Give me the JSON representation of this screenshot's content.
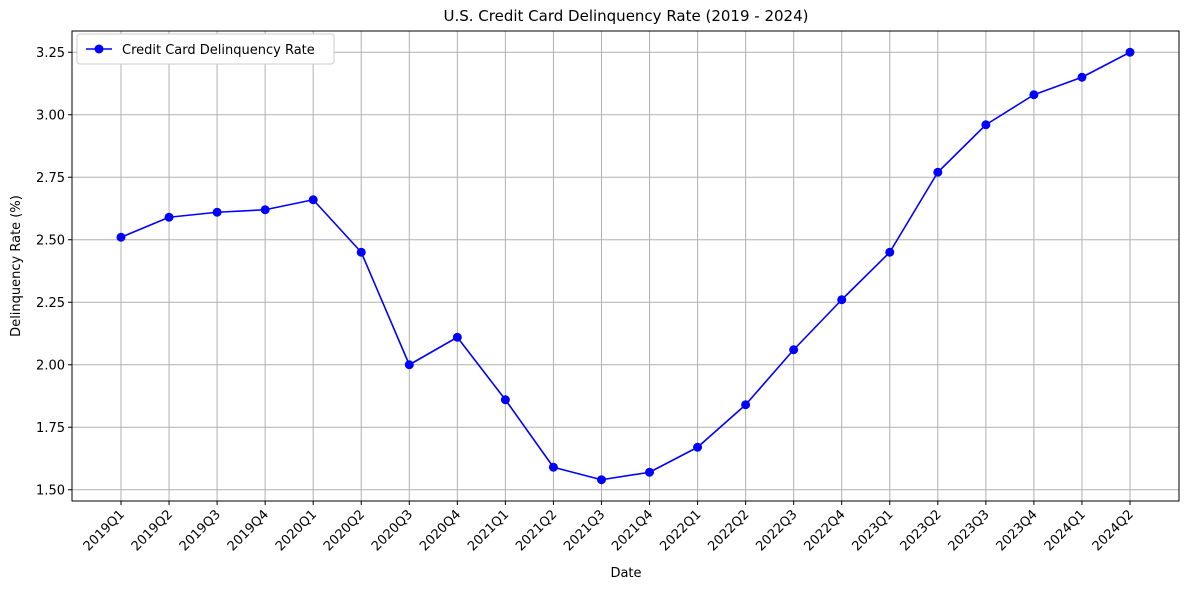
{
  "chart_data": {
    "type": "line",
    "title": "U.S. Credit Card Delinquency Rate (2019 - 2024)",
    "xlabel": "Date",
    "ylabel": "Delinquency Rate (%)",
    "categories": [
      "2019Q1",
      "2019Q2",
      "2019Q3",
      "2019Q4",
      "2020Q1",
      "2020Q2",
      "2020Q3",
      "2020Q4",
      "2021Q1",
      "2021Q2",
      "2021Q3",
      "2021Q4",
      "2022Q1",
      "2022Q2",
      "2022Q3",
      "2022Q4",
      "2023Q1",
      "2023Q2",
      "2023Q3",
      "2023Q4",
      "2024Q1",
      "2024Q2"
    ],
    "series": [
      {
        "name": "Credit Card Delinquency Rate",
        "color": "#0000ff",
        "marker": "circle",
        "values": [
          2.51,
          2.59,
          2.61,
          2.62,
          2.66,
          2.45,
          2.0,
          2.11,
          1.86,
          1.59,
          1.54,
          1.57,
          1.67,
          1.84,
          2.06,
          2.26,
          2.45,
          2.77,
          2.96,
          3.08,
          3.15,
          3.25
        ]
      }
    ],
    "ylim": [
      1.455,
      3.335
    ],
    "yticks": [
      1.5,
      1.75,
      2.0,
      2.25,
      2.5,
      2.75,
      3.0,
      3.25
    ],
    "ytick_labels": [
      "1.50",
      "1.75",
      "2.00",
      "2.25",
      "2.50",
      "2.75",
      "3.00",
      "3.25"
    ],
    "grid": true,
    "legend": "upper-left",
    "xtick_rotation": "45°"
  }
}
